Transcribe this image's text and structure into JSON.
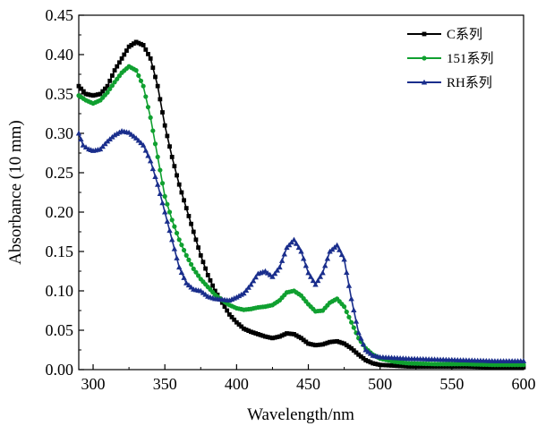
{
  "chart_data": {
    "type": "line",
    "title": "",
    "xlabel": "Wavelength/nm",
    "ylabel": "Absorbance (10 mm)",
    "xlim": [
      290,
      600
    ],
    "ylim": [
      0,
      0.45
    ],
    "xticks": [
      300,
      350,
      400,
      450,
      500,
      550,
      600
    ],
    "yticks": [
      0.0,
      0.05,
      0.1,
      0.15,
      0.2,
      0.25,
      0.3,
      0.35,
      0.4,
      0.45
    ],
    "grid": false,
    "legend_position": "top-right",
    "series": [
      {
        "name": "C系列",
        "color": "#000000",
        "marker": "square",
        "points": [
          [
            290,
            0.36
          ],
          [
            295,
            0.35
          ],
          [
            300,
            0.348
          ],
          [
            305,
            0.35
          ],
          [
            310,
            0.36
          ],
          [
            315,
            0.38
          ],
          [
            320,
            0.395
          ],
          [
            325,
            0.41
          ],
          [
            330,
            0.416
          ],
          [
            335,
            0.412
          ],
          [
            340,
            0.395
          ],
          [
            345,
            0.36
          ],
          [
            350,
            0.31
          ],
          [
            355,
            0.27
          ],
          [
            360,
            0.235
          ],
          [
            365,
            0.205
          ],
          [
            370,
            0.175
          ],
          [
            375,
            0.145
          ],
          [
            380,
            0.12
          ],
          [
            385,
            0.1
          ],
          [
            390,
            0.085
          ],
          [
            395,
            0.07
          ],
          [
            400,
            0.06
          ],
          [
            405,
            0.052
          ],
          [
            410,
            0.048
          ],
          [
            415,
            0.045
          ],
          [
            420,
            0.042
          ],
          [
            425,
            0.04
          ],
          [
            430,
            0.042
          ],
          [
            435,
            0.046
          ],
          [
            440,
            0.045
          ],
          [
            445,
            0.04
          ],
          [
            450,
            0.033
          ],
          [
            455,
            0.031
          ],
          [
            460,
            0.032
          ],
          [
            465,
            0.035
          ],
          [
            470,
            0.036
          ],
          [
            475,
            0.033
          ],
          [
            480,
            0.027
          ],
          [
            485,
            0.019
          ],
          [
            490,
            0.012
          ],
          [
            495,
            0.008
          ],
          [
            500,
            0.006
          ],
          [
            510,
            0.005
          ],
          [
            520,
            0.004
          ],
          [
            540,
            0.004
          ],
          [
            560,
            0.004
          ],
          [
            580,
            0.003
          ],
          [
            600,
            0.003
          ]
        ]
      },
      {
        "name": "151系列",
        "color": "#10a030",
        "marker": "circle",
        "points": [
          [
            290,
            0.348
          ],
          [
            295,
            0.342
          ],
          [
            300,
            0.338
          ],
          [
            305,
            0.342
          ],
          [
            310,
            0.352
          ],
          [
            315,
            0.365
          ],
          [
            320,
            0.377
          ],
          [
            325,
            0.385
          ],
          [
            330,
            0.38
          ],
          [
            335,
            0.36
          ],
          [
            340,
            0.32
          ],
          [
            345,
            0.27
          ],
          [
            350,
            0.22
          ],
          [
            355,
            0.19
          ],
          [
            360,
            0.165
          ],
          [
            365,
            0.145
          ],
          [
            370,
            0.128
          ],
          [
            375,
            0.115
          ],
          [
            380,
            0.105
          ],
          [
            385,
            0.095
          ],
          [
            390,
            0.088
          ],
          [
            395,
            0.082
          ],
          [
            400,
            0.078
          ],
          [
            405,
            0.076
          ],
          [
            410,
            0.077
          ],
          [
            415,
            0.079
          ],
          [
            420,
            0.08
          ],
          [
            425,
            0.082
          ],
          [
            430,
            0.088
          ],
          [
            435,
            0.098
          ],
          [
            440,
            0.1
          ],
          [
            445,
            0.094
          ],
          [
            450,
            0.083
          ],
          [
            455,
            0.074
          ],
          [
            460,
            0.075
          ],
          [
            465,
            0.085
          ],
          [
            470,
            0.09
          ],
          [
            475,
            0.08
          ],
          [
            480,
            0.06
          ],
          [
            485,
            0.04
          ],
          [
            490,
            0.027
          ],
          [
            495,
            0.019
          ],
          [
            500,
            0.014
          ],
          [
            510,
            0.01
          ],
          [
            520,
            0.008
          ],
          [
            540,
            0.007
          ],
          [
            560,
            0.007
          ],
          [
            580,
            0.006
          ],
          [
            600,
            0.006
          ]
        ]
      },
      {
        "name": "RH系列",
        "color": "#1a2e8c",
        "marker": "triangle",
        "points": [
          [
            290,
            0.3
          ],
          [
            293,
            0.285
          ],
          [
            297,
            0.28
          ],
          [
            300,
            0.278
          ],
          [
            305,
            0.28
          ],
          [
            310,
            0.29
          ],
          [
            315,
            0.298
          ],
          [
            320,
            0.303
          ],
          [
            325,
            0.301
          ],
          [
            330,
            0.294
          ],
          [
            335,
            0.285
          ],
          [
            340,
            0.265
          ],
          [
            345,
            0.235
          ],
          [
            350,
            0.2
          ],
          [
            355,
            0.165
          ],
          [
            360,
            0.13
          ],
          [
            365,
            0.11
          ],
          [
            370,
            0.102
          ],
          [
            375,
            0.1
          ],
          [
            380,
            0.093
          ],
          [
            385,
            0.09
          ],
          [
            390,
            0.089
          ],
          [
            395,
            0.088
          ],
          [
            400,
            0.092
          ],
          [
            405,
            0.097
          ],
          [
            410,
            0.108
          ],
          [
            415,
            0.122
          ],
          [
            420,
            0.125
          ],
          [
            425,
            0.118
          ],
          [
            430,
            0.13
          ],
          [
            435,
            0.155
          ],
          [
            440,
            0.165
          ],
          [
            445,
            0.15
          ],
          [
            450,
            0.123
          ],
          [
            455,
            0.108
          ],
          [
            460,
            0.123
          ],
          [
            465,
            0.15
          ],
          [
            470,
            0.158
          ],
          [
            475,
            0.14
          ],
          [
            480,
            0.09
          ],
          [
            485,
            0.047
          ],
          [
            490,
            0.025
          ],
          [
            495,
            0.018
          ],
          [
            500,
            0.016
          ],
          [
            510,
            0.015
          ],
          [
            520,
            0.014
          ],
          [
            540,
            0.013
          ],
          [
            560,
            0.012
          ],
          [
            580,
            0.011
          ],
          [
            600,
            0.011
          ]
        ]
      }
    ]
  }
}
